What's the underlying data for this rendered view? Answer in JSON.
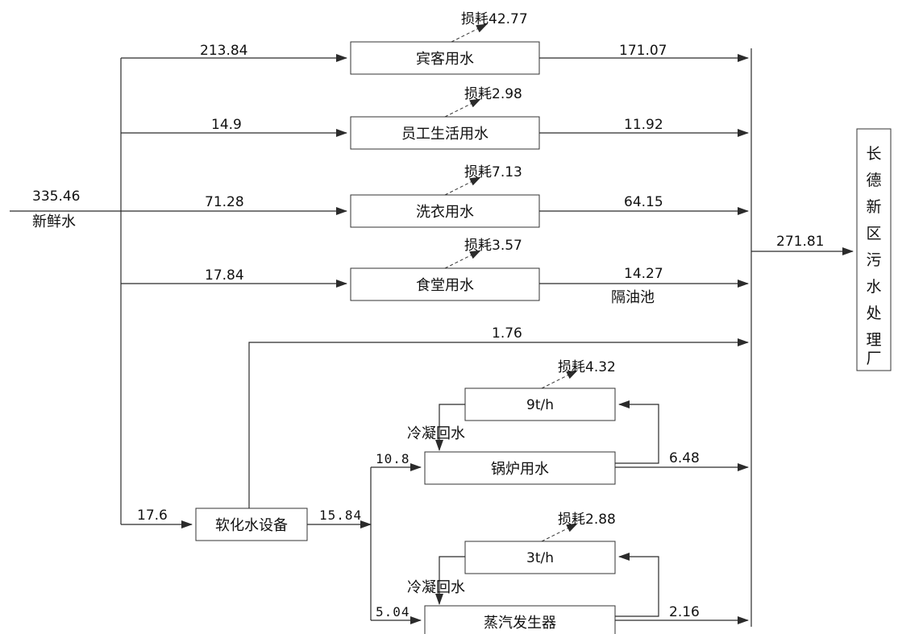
{
  "source": {
    "value": "335.46",
    "label": "新鲜水"
  },
  "units": [
    {
      "name": "宾客用水",
      "in": "213.84",
      "loss": "损耗42.77",
      "out": "171.07"
    },
    {
      "name": "员工生活用水",
      "in": "14.9",
      "loss": "损耗2.98",
      "out": "11.92"
    },
    {
      "name": "洗衣用水",
      "in": "71.28",
      "loss": "损耗7.13",
      "out": "64.15"
    },
    {
      "name": "食堂用水",
      "in": "17.84",
      "loss": "损耗3.57",
      "out": "14.27",
      "note": "隔油池"
    }
  ],
  "softener": {
    "name": "软化水设备",
    "in": "17.6",
    "bypass": "1.76",
    "out": "15.84"
  },
  "boiler": {
    "name": "锅炉用水",
    "in": "10.8",
    "cycle": "9t/h",
    "loss": "损耗4.32",
    "return_label": "冷凝回水",
    "out": "6.48"
  },
  "steam": {
    "name": "蒸汽发生器",
    "in": "5.04",
    "cycle": "3t/h",
    "loss": "损耗2.88",
    "return_label": "冷凝回水",
    "out": "2.16"
  },
  "plant": {
    "total": "271.81",
    "chars": [
      "长",
      "德",
      "新",
      "区",
      "污",
      "水",
      "处",
      "理",
      "厂"
    ]
  }
}
